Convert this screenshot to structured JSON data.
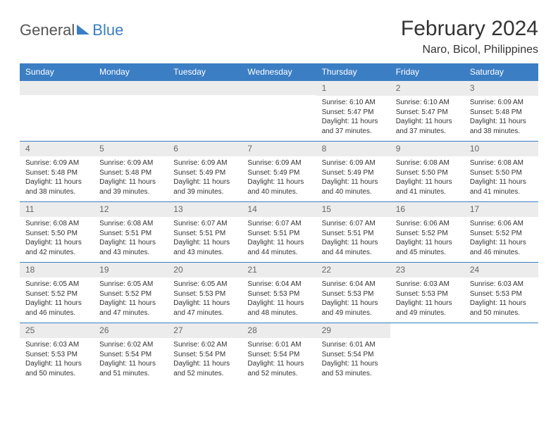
{
  "logo": {
    "word1": "General",
    "word2": "Blue"
  },
  "title": "February 2024",
  "location": "Naro, Bicol, Philippines",
  "style": {
    "header_bg": "#3b7ec4",
    "daynum_bg": "#ececec",
    "row_border": "#3b7ec4",
    "text": "#333333",
    "title_fontsize": 30,
    "day_header_fontsize": 12,
    "cell_fontsize": 10
  },
  "day_headers": [
    "Sunday",
    "Monday",
    "Tuesday",
    "Wednesday",
    "Thursday",
    "Friday",
    "Saturday"
  ],
  "weeks": [
    [
      null,
      null,
      null,
      null,
      {
        "n": "1",
        "sunrise": "6:10 AM",
        "sunset": "5:47 PM",
        "daylight": "11 hours and 37 minutes."
      },
      {
        "n": "2",
        "sunrise": "6:10 AM",
        "sunset": "5:47 PM",
        "daylight": "11 hours and 37 minutes."
      },
      {
        "n": "3",
        "sunrise": "6:09 AM",
        "sunset": "5:48 PM",
        "daylight": "11 hours and 38 minutes."
      }
    ],
    [
      {
        "n": "4",
        "sunrise": "6:09 AM",
        "sunset": "5:48 PM",
        "daylight": "11 hours and 38 minutes."
      },
      {
        "n": "5",
        "sunrise": "6:09 AM",
        "sunset": "5:48 PM",
        "daylight": "11 hours and 39 minutes."
      },
      {
        "n": "6",
        "sunrise": "6:09 AM",
        "sunset": "5:49 PM",
        "daylight": "11 hours and 39 minutes."
      },
      {
        "n": "7",
        "sunrise": "6:09 AM",
        "sunset": "5:49 PM",
        "daylight": "11 hours and 40 minutes."
      },
      {
        "n": "8",
        "sunrise": "6:09 AM",
        "sunset": "5:49 PM",
        "daylight": "11 hours and 40 minutes."
      },
      {
        "n": "9",
        "sunrise": "6:08 AM",
        "sunset": "5:50 PM",
        "daylight": "11 hours and 41 minutes."
      },
      {
        "n": "10",
        "sunrise": "6:08 AM",
        "sunset": "5:50 PM",
        "daylight": "11 hours and 41 minutes."
      }
    ],
    [
      {
        "n": "11",
        "sunrise": "6:08 AM",
        "sunset": "5:50 PM",
        "daylight": "11 hours and 42 minutes."
      },
      {
        "n": "12",
        "sunrise": "6:08 AM",
        "sunset": "5:51 PM",
        "daylight": "11 hours and 43 minutes."
      },
      {
        "n": "13",
        "sunrise": "6:07 AM",
        "sunset": "5:51 PM",
        "daylight": "11 hours and 43 minutes."
      },
      {
        "n": "14",
        "sunrise": "6:07 AM",
        "sunset": "5:51 PM",
        "daylight": "11 hours and 44 minutes."
      },
      {
        "n": "15",
        "sunrise": "6:07 AM",
        "sunset": "5:51 PM",
        "daylight": "11 hours and 44 minutes."
      },
      {
        "n": "16",
        "sunrise": "6:06 AM",
        "sunset": "5:52 PM",
        "daylight": "11 hours and 45 minutes."
      },
      {
        "n": "17",
        "sunrise": "6:06 AM",
        "sunset": "5:52 PM",
        "daylight": "11 hours and 46 minutes."
      }
    ],
    [
      {
        "n": "18",
        "sunrise": "6:05 AM",
        "sunset": "5:52 PM",
        "daylight": "11 hours and 46 minutes."
      },
      {
        "n": "19",
        "sunrise": "6:05 AM",
        "sunset": "5:52 PM",
        "daylight": "11 hours and 47 minutes."
      },
      {
        "n": "20",
        "sunrise": "6:05 AM",
        "sunset": "5:53 PM",
        "daylight": "11 hours and 47 minutes."
      },
      {
        "n": "21",
        "sunrise": "6:04 AM",
        "sunset": "5:53 PM",
        "daylight": "11 hours and 48 minutes."
      },
      {
        "n": "22",
        "sunrise": "6:04 AM",
        "sunset": "5:53 PM",
        "daylight": "11 hours and 49 minutes."
      },
      {
        "n": "23",
        "sunrise": "6:03 AM",
        "sunset": "5:53 PM",
        "daylight": "11 hours and 49 minutes."
      },
      {
        "n": "24",
        "sunrise": "6:03 AM",
        "sunset": "5:53 PM",
        "daylight": "11 hours and 50 minutes."
      }
    ],
    [
      {
        "n": "25",
        "sunrise": "6:03 AM",
        "sunset": "5:53 PM",
        "daylight": "11 hours and 50 minutes."
      },
      {
        "n": "26",
        "sunrise": "6:02 AM",
        "sunset": "5:54 PM",
        "daylight": "11 hours and 51 minutes."
      },
      {
        "n": "27",
        "sunrise": "6:02 AM",
        "sunset": "5:54 PM",
        "daylight": "11 hours and 52 minutes."
      },
      {
        "n": "28",
        "sunrise": "6:01 AM",
        "sunset": "5:54 PM",
        "daylight": "11 hours and 52 minutes."
      },
      {
        "n": "29",
        "sunrise": "6:01 AM",
        "sunset": "5:54 PM",
        "daylight": "11 hours and 53 minutes."
      },
      null,
      null
    ]
  ],
  "labels": {
    "sunrise": "Sunrise:",
    "sunset": "Sunset:",
    "daylight": "Daylight:"
  }
}
